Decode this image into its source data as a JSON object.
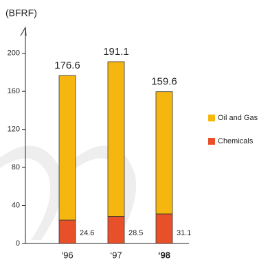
{
  "chart_data": {
    "type": "stacked_bar",
    "unit_label": "(BFRF)",
    "categories": [
      "‘96",
      "‘97",
      "‘98"
    ],
    "series": [
      {
        "name": "Chemicals",
        "color": "#e8502a",
        "values": [
          24.6,
          28.5,
          31.1
        ]
      },
      {
        "name": "Oil and Gas",
        "color": "#f5b70f",
        "values": [
          152,
          162.6,
          128.5
        ]
      }
    ],
    "totals": [
      176.6,
      191.1,
      159.6
    ],
    "ylim": [
      0,
      225
    ],
    "yticks": [
      0,
      40,
      80,
      120,
      160,
      200
    ]
  }
}
